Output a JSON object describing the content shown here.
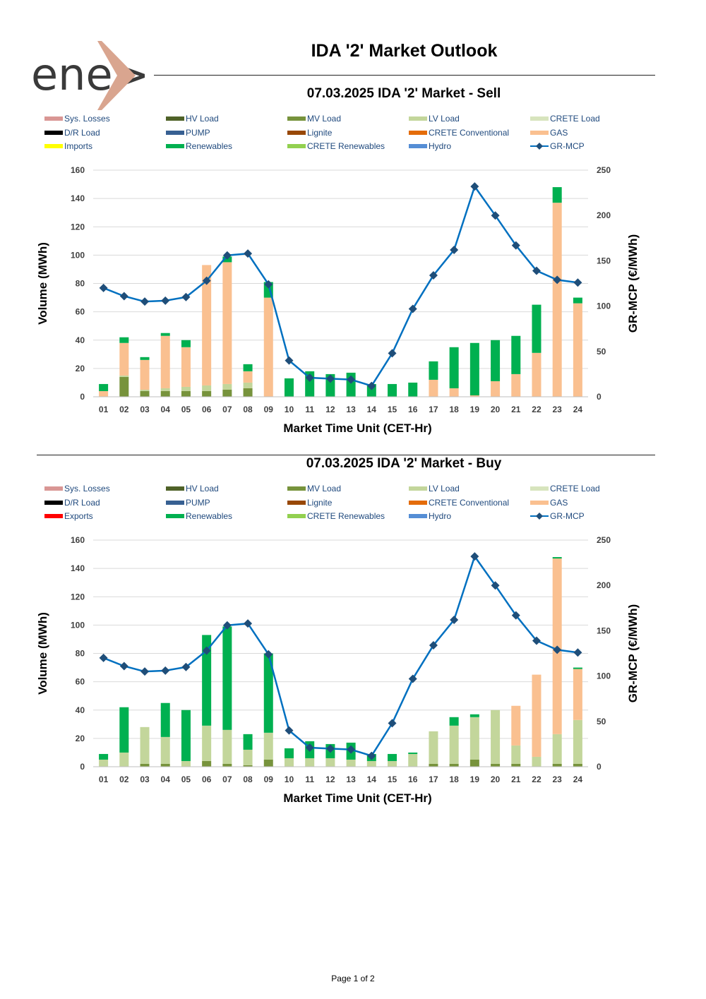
{
  "header": {
    "logo_text": "ene>",
    "title": "IDA '2' Market Outlook"
  },
  "footer": {
    "page_label": "Page 1 of 2"
  },
  "colors": {
    "Sys. Losses": "#d99694",
    "HV Load": "#4f6228",
    "MV Load": "#77933c",
    "LV Load": "#c3d69b",
    "CRETE Load": "#d7e4bd",
    "D/R Load": "#000000",
    "PUMP": "#376092",
    "Lignite": "#984807",
    "CRETE Conventional": "#e46c0a",
    "GAS": "#fac090",
    "Imports": "#ffff00",
    "Exports": "#ff0000",
    "Renewables": "#00b050",
    "CRETE Renewables": "#92d050",
    "Hydro": "#558ed5",
    "GR-MCP": "#0070c0",
    "GR-MCP-marker": "#1f4e79",
    "grid": "#d9d9d9",
    "axis_text": "#404040",
    "legend_text": "#1f497d"
  },
  "chart_data": [
    {
      "type": "bar",
      "stacked": true,
      "title": "07.03.2025  IDA '2' Market - Sell",
      "xlabel": "Market Time Unit (CET-Hr)",
      "ylabel": "Volume (MWh)",
      "y2label": "GR-MCP (€/MWh)",
      "ylim": [
        0,
        160
      ],
      "yticks": [
        0,
        20,
        40,
        60,
        80,
        100,
        120,
        140,
        160
      ],
      "y2lim": [
        0,
        250
      ],
      "y2ticks": [
        0,
        50,
        100,
        150,
        200,
        250
      ],
      "grid": true,
      "legend_position": "top",
      "legend": [
        "Sys. Losses",
        "HV Load",
        "MV Load",
        "LV Load",
        "CRETE Load",
        "D/R Load",
        "PUMP",
        "Lignite",
        "CRETE Conventional",
        "GAS",
        "Imports",
        "Renewables",
        "CRETE Renewables",
        "Hydro",
        "GR-MCP"
      ],
      "categories": [
        "01",
        "02",
        "03",
        "04",
        "05",
        "06",
        "07",
        "08",
        "09",
        "10",
        "11",
        "12",
        "13",
        "14",
        "15",
        "16",
        "17",
        "18",
        "19",
        "20",
        "21",
        "22",
        "23",
        "24"
      ],
      "series": [
        {
          "name": "MV Load",
          "values": [
            0,
            14,
            4,
            4,
            4,
            4,
            5,
            6,
            0,
            0,
            0,
            0,
            0,
            0,
            0,
            0,
            0,
            0,
            0,
            0,
            0,
            0,
            0,
            0
          ]
        },
        {
          "name": "LV Load",
          "values": [
            0,
            1,
            1,
            2,
            3,
            4,
            4,
            4,
            0,
            0,
            0,
            0,
            0,
            0,
            0,
            0,
            0,
            0,
            0,
            0,
            0,
            0,
            0,
            0
          ]
        },
        {
          "name": "GAS",
          "values": [
            4,
            23,
            21,
            37,
            28,
            85,
            86,
            8,
            70,
            0,
            0,
            0,
            0,
            0,
            0,
            0,
            12,
            6,
            1,
            11,
            16,
            31,
            137,
            66
          ]
        },
        {
          "name": "Renewables",
          "values": [
            5,
            4,
            2,
            2,
            5,
            0,
            4,
            5,
            11,
            13,
            18,
            16,
            17,
            9,
            9,
            10,
            13,
            29,
            37,
            29,
            27,
            34,
            11,
            4
          ]
        }
      ],
      "line": {
        "name": "GR-MCP",
        "axis": "right",
        "values": [
          120,
          111,
          105,
          106,
          110,
          128,
          156,
          158,
          124,
          40,
          21,
          20,
          19,
          12,
          48,
          97,
          134,
          162,
          232,
          200,
          167,
          139,
          129,
          126
        ]
      }
    },
    {
      "type": "bar",
      "stacked": true,
      "title": "07.03.2025  IDA '2' Market - Buy",
      "xlabel": "Market Time Unit (CET-Hr)",
      "ylabel": "Volume (MWh)",
      "y2label": "GR-MCP (€/MWh)",
      "ylim": [
        0,
        160
      ],
      "yticks": [
        0,
        20,
        40,
        60,
        80,
        100,
        120,
        140,
        160
      ],
      "y2lim": [
        0,
        250
      ],
      "y2ticks": [
        0,
        50,
        100,
        150,
        200,
        250
      ],
      "grid": true,
      "legend_position": "top",
      "legend": [
        "Sys. Losses",
        "HV Load",
        "MV Load",
        "LV Load",
        "CRETE Load",
        "D/R Load",
        "PUMP",
        "Lignite",
        "CRETE Conventional",
        "GAS",
        "Exports",
        "Renewables",
        "CRETE Renewables",
        "Hydro",
        "GR-MCP"
      ],
      "categories": [
        "01",
        "02",
        "03",
        "04",
        "05",
        "06",
        "07",
        "08",
        "09",
        "10",
        "11",
        "12",
        "13",
        "14",
        "15",
        "16",
        "17",
        "18",
        "19",
        "20",
        "21",
        "22",
        "23",
        "24"
      ],
      "series": [
        {
          "name": "MV Load",
          "values": [
            0,
            0,
            2,
            2,
            0,
            4,
            2,
            1,
            5,
            0,
            0,
            0,
            0,
            0,
            0,
            0,
            2,
            2,
            5,
            2,
            2,
            0,
            2,
            2
          ]
        },
        {
          "name": "LV Load",
          "values": [
            5,
            10,
            26,
            19,
            4,
            25,
            24,
            11,
            19,
            6,
            6,
            6,
            5,
            4,
            4,
            9,
            23,
            27,
            30,
            38,
            13,
            7,
            21,
            31
          ]
        },
        {
          "name": "GAS",
          "values": [
            0,
            0,
            0,
            0,
            0,
            0,
            0,
            0,
            0,
            0,
            0,
            0,
            0,
            0,
            0,
            0,
            0,
            0,
            0,
            0,
            28,
            58,
            124,
            36
          ]
        },
        {
          "name": "Renewables",
          "values": [
            4,
            32,
            0,
            24,
            36,
            64,
            73,
            11,
            56,
            7,
            12,
            10,
            12,
            5,
            5,
            1,
            0,
            6,
            2,
            0,
            0,
            0,
            1,
            1
          ]
        }
      ],
      "line": {
        "name": "GR-MCP",
        "axis": "right",
        "values": [
          120,
          111,
          105,
          106,
          110,
          128,
          156,
          158,
          124,
          40,
          21,
          20,
          19,
          12,
          48,
          97,
          134,
          162,
          232,
          200,
          167,
          139,
          129,
          126
        ]
      }
    }
  ]
}
